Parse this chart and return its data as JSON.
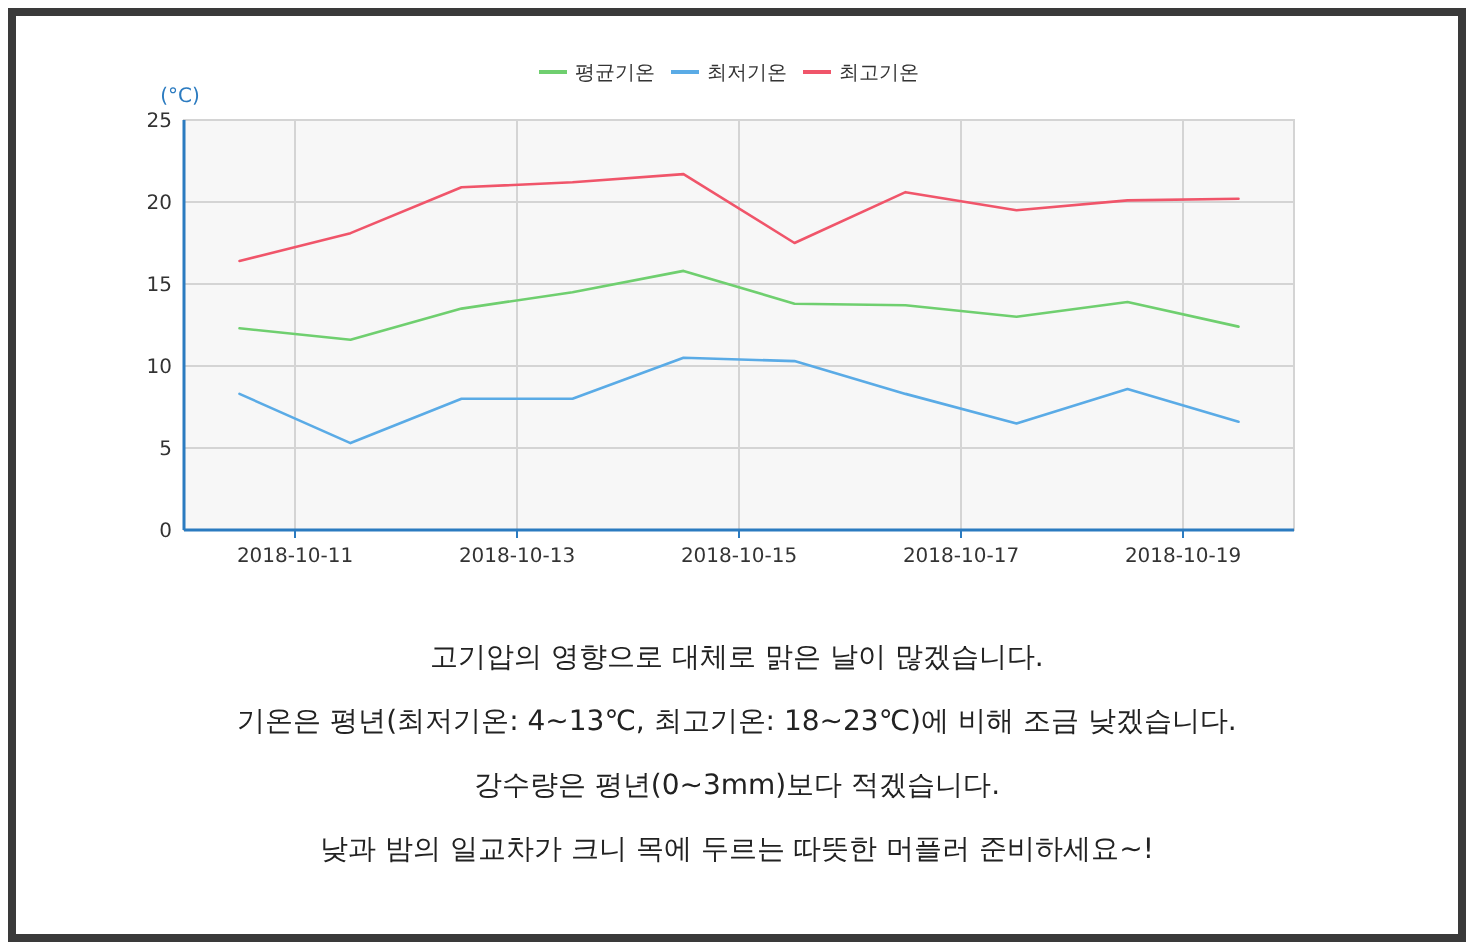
{
  "chart_data": {
    "type": "line",
    "ylabel": "(°C)",
    "x": [
      "2018-10-10T12:00",
      "2018-10-11T12:00",
      "2018-10-12T12:00",
      "2018-10-13T12:00",
      "2018-10-14T12:00",
      "2018-10-15T12:00",
      "2018-10-16T12:00",
      "2018-10-17T12:00",
      "2018-10-18T12:00",
      "2018-10-19T12:00"
    ],
    "series": [
      {
        "name": "평균기온",
        "color": "#6fcf6f",
        "values": [
          12.3,
          11.6,
          13.5,
          14.5,
          15.8,
          13.8,
          13.7,
          13.0,
          13.9,
          12.4
        ]
      },
      {
        "name": "최저기온",
        "color": "#5aabe6",
        "values": [
          8.3,
          5.3,
          8.0,
          8.0,
          10.5,
          10.3,
          8.3,
          6.5,
          8.6,
          6.6
        ]
      },
      {
        "name": "최고기온",
        "color": "#f0556a",
        "values": [
          16.4,
          18.1,
          20.9,
          21.2,
          21.7,
          17.5,
          20.6,
          19.5,
          20.1,
          20.2
        ]
      }
    ],
    "xlim": [
      "2018-10-10",
      "2018-10-20"
    ],
    "xticks": [
      {
        "value": "2018-10-11",
        "label": "2018-10-11"
      },
      {
        "value": "2018-10-13",
        "label": "2018-10-13"
      },
      {
        "value": "2018-10-15",
        "label": "2018-10-15"
      },
      {
        "value": "2018-10-17",
        "label": "2018-10-17"
      },
      {
        "value": "2018-10-19",
        "label": "2018-10-19"
      }
    ],
    "ylim": [
      0,
      25
    ],
    "yticks": [
      0,
      5,
      10,
      15,
      20,
      25
    ],
    "grid": true,
    "legend": "top",
    "marker": "none",
    "line_style": "solid",
    "annotations": [
      "고기압의 영향으로 대체로 맑은 날이 많겠습니다.",
      "기온은 평년(최저기온: 4~13℃, 최고기온: 18~23℃)에 비해 조금 낮겠습니다.",
      "강수량은 평년(0~3mm)보다 적겠습니다.",
      "낮과 밤의 일교차가 크니 목에 두르는 따뜻한 머플러 준비하세요~!"
    ]
  }
}
